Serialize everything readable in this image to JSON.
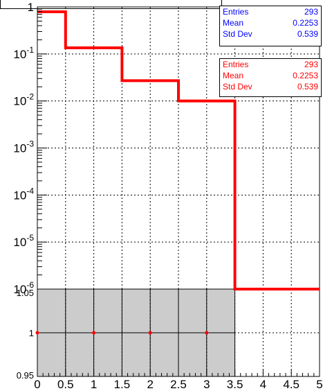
{
  "chart_data": [
    {
      "type": "histogram",
      "yscale": "log",
      "ylim": [
        1e-06,
        1
      ],
      "xlim": [
        0,
        5
      ],
      "grid": true,
      "bin_edges": [
        0,
        0.5,
        1,
        1.5,
        2,
        2.5,
        3,
        3.5,
        4,
        4.5,
        5
      ],
      "values": [
        0.79,
        0.135,
        0.135,
        0.027,
        0.027,
        0.01,
        0.01,
        1e-06,
        1e-06,
        1e-06
      ],
      "y_tick_labels": [
        "1",
        "10^-1",
        "10^-2",
        "10^-3",
        "10^-4",
        "10^-5",
        "10^-6"
      ],
      "stats_boxes": [
        {
          "color": "#0000ff",
          "entries_label": "Entries",
          "entries": "293",
          "mean_label": "Mean",
          "mean": "0.2253",
          "std_label": "Std Dev",
          "std": "0.539"
        },
        {
          "color": "#ff0000",
          "entries_label": "Entries",
          "entries": "293",
          "mean_label": "Mean",
          "mean": "0.2253",
          "std_label": "Std Dev",
          "std": "0.539"
        }
      ]
    },
    {
      "type": "scatter",
      "ylim": [
        0.95,
        1.05
      ],
      "xlim": [
        0,
        5
      ],
      "grid": true,
      "x_tick_labels": [
        "0",
        "0.5",
        "1",
        "1.5",
        "2",
        "2.5",
        "3",
        "3.5",
        "4",
        "4.5",
        "5"
      ],
      "y_tick_labels": [
        "0.95",
        "1",
        "1.05"
      ],
      "band": {
        "x_from": 0,
        "x_to": 3.5,
        "y_from": 0.95,
        "y_to": 1.05
      },
      "points": [
        {
          "x": 0,
          "y": 1
        },
        {
          "x": 1,
          "y": 1
        },
        {
          "x": 2,
          "y": 1
        },
        {
          "x": 3,
          "y": 1
        }
      ]
    }
  ],
  "colors": {
    "line": "#ff0000",
    "band": "#cccccc",
    "points": "#ff0000",
    "stats_blue": "#0000ff",
    "stats_red": "#ff0000"
  }
}
